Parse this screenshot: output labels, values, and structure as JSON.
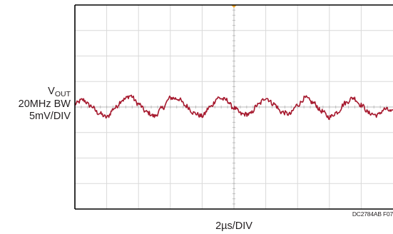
{
  "chart_data": {
    "type": "line",
    "signal_label": "V",
    "signal_subscript": "OUT",
    "bandwidth_label": "20MHz BW",
    "vertical_scale_label": "5mV/DIV",
    "timebase_label": "2µs/DIV",
    "figure_id": "DC2784AB F07",
    "grid": true,
    "divisions": {
      "x": 10,
      "y": 8
    },
    "xlim": [
      0,
      20
    ],
    "ylim": [
      -20,
      20
    ],
    "x_unit": "µs",
    "y_unit": "mV",
    "series": [
      {
        "color": "#a6192e",
        "x": [
          0,
          0.5,
          1.0,
          1.5,
          2.0,
          2.5,
          3.0,
          3.5,
          4.0,
          4.5,
          5.0,
          5.5,
          6.0,
          6.5,
          7.0,
          7.5,
          8.0,
          8.5,
          9.0,
          9.5,
          10.0,
          10.5,
          11.0,
          11.5,
          12.0,
          12.5,
          13.0,
          13.5,
          14.0,
          14.5,
          15.0,
          15.5,
          16.0,
          16.5,
          17.0,
          17.5,
          18.0,
          18.5,
          19.0,
          19.5,
          20.0
        ],
        "y": [
          0.6,
          1.4,
          0.2,
          -1.2,
          -2.0,
          -0.2,
          1.4,
          2.2,
          0.6,
          -1.0,
          -1.8,
          -0.2,
          1.8,
          1.6,
          0.2,
          -1.2,
          -1.8,
          0.0,
          1.8,
          1.4,
          -0.2,
          -1.4,
          -1.4,
          0.4,
          1.8,
          0.6,
          -1.0,
          -1.4,
          0.4,
          1.8,
          0.8,
          -0.8,
          -2.0,
          -1.0,
          0.8,
          1.8,
          0.4,
          -1.2,
          -1.6,
          -0.4,
          -1.0
        ]
      }
    ],
    "markers": [
      {
        "type": "trigger",
        "x": 10,
        "color": "#f5a623"
      }
    ]
  }
}
